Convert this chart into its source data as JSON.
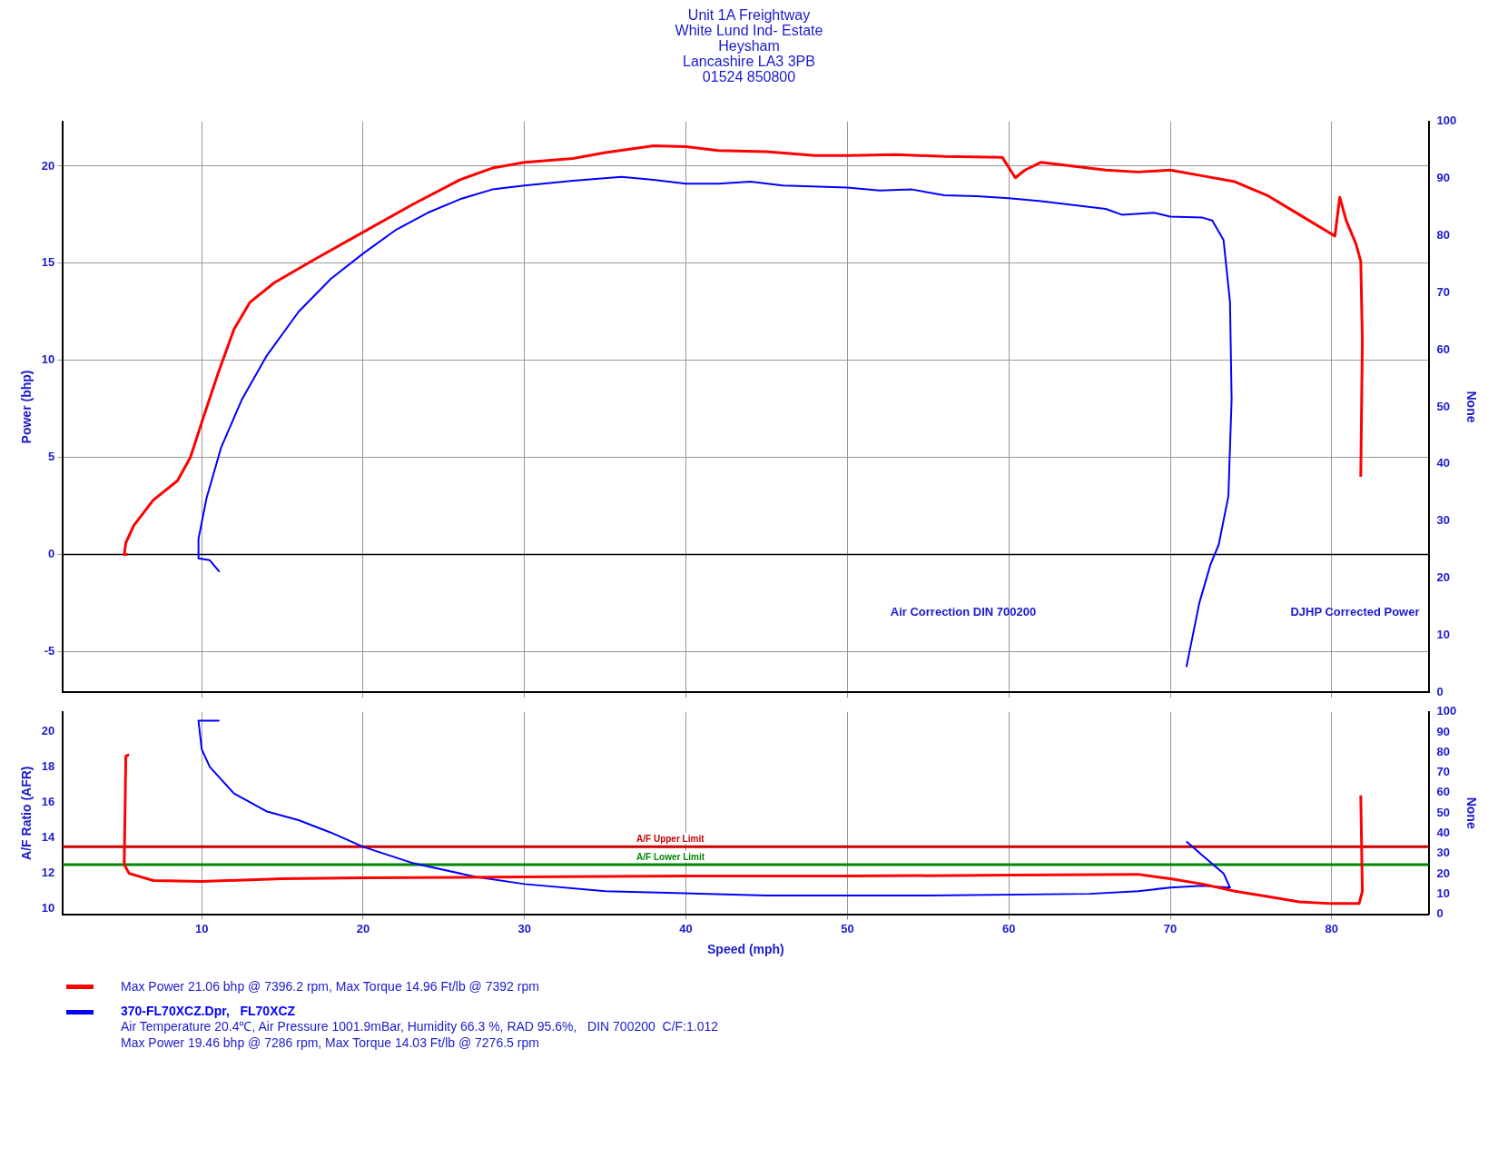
{
  "chart_data": [
    {
      "type": "line",
      "subtitle": "Unit 1A Freightway\nWhite Lund Ind- Estate\nHeysham\nLancashire LA3 3PB\n01524 850800",
      "ylabel": "Power (bhp)",
      "y2label": "None",
      "xlim": [
        1.4,
        86
      ],
      "xticks": [
        10,
        20,
        30,
        40,
        50,
        60,
        70,
        80
      ],
      "ylim": [
        -7.1,
        22.3
      ],
      "yticks": [
        -5,
        0,
        5,
        10,
        15,
        20
      ],
      "y2lim": [
        0,
        100
      ],
      "y2ticks": [
        0,
        10,
        20,
        30,
        40,
        50,
        60,
        70,
        80,
        90,
        100
      ],
      "tick_labels": "y",
      "grid": true,
      "marker": "none",
      "legend": false,
      "annotations": [
        "Air Correction DIN 700200",
        "DJHP Corrected Power"
      ],
      "ref_lines": [
        {
          "axis": "y",
          "value": 0,
          "color": "#000000"
        }
      ],
      "series": [
        {
          "color": "#ff0000",
          "x": [
            5.4,
            5.2,
            5.3,
            5.8,
            7,
            8.5,
            9.3,
            10,
            11,
            12,
            13,
            14.5,
            17,
            20,
            23,
            26,
            28,
            30,
            33,
            35,
            38,
            40,
            42,
            45,
            48,
            50,
            53,
            56,
            59.6,
            60.4,
            61,
            62,
            64,
            66,
            68,
            70,
            72,
            74,
            76,
            78,
            80.2,
            80.5,
            80.9,
            81.5,
            81.8,
            81.9,
            81.8
          ],
          "values": [
            0,
            0,
            0.6,
            1.5,
            2.8,
            3.8,
            5,
            6.8,
            9.3,
            11.6,
            13,
            14,
            15.2,
            16.6,
            18,
            19.3,
            19.9,
            20.2,
            20.4,
            20.7,
            21.05,
            21,
            20.8,
            20.75,
            20.55,
            20.55,
            20.6,
            20.5,
            20.45,
            19.4,
            19.8,
            20.2,
            20,
            19.8,
            19.7,
            19.8,
            19.5,
            19.2,
            18.5,
            17.5,
            16.4,
            18.4,
            17.2,
            16,
            15.1,
            11,
            4
          ]
        },
        {
          "color": "#0000ff",
          "x": [
            11.1,
            10.5,
            9.8,
            9.8,
            10.3,
            11.2,
            12.5,
            14,
            16,
            18,
            20,
            22,
            24,
            26,
            28,
            30,
            33,
            36,
            38,
            40,
            42,
            44,
            46,
            50,
            52,
            54,
            56,
            58,
            60,
            62,
            64,
            66,
            67,
            69,
            70,
            72,
            72.6,
            73.3,
            73.7,
            73.8,
            73.6,
            73,
            72.5,
            71.8,
            71
          ],
          "values": [
            -0.9,
            -0.3,
            -0.2,
            0.8,
            2.9,
            5.5,
            8,
            10.2,
            12.5,
            14.2,
            15.5,
            16.7,
            17.6,
            18.3,
            18.8,
            19,
            19.25,
            19.45,
            19.3,
            19.1,
            19.1,
            19.2,
            19,
            18.9,
            18.75,
            18.8,
            18.5,
            18.45,
            18.35,
            18.2,
            18,
            17.8,
            17.5,
            17.6,
            17.4,
            17.35,
            17.2,
            16.2,
            13,
            8,
            3,
            0.5,
            -0.5,
            -2.5,
            -5.8
          ]
        }
      ]
    },
    {
      "type": "line",
      "xlabel": "Speed (mph)",
      "ylabel": "A/F Ratio (AFR)",
      "y2label": "None",
      "xlim": [
        1.4,
        86
      ],
      "xticks": [
        10,
        20,
        30,
        40,
        50,
        60,
        70,
        80
      ],
      "ylim": [
        9.7,
        21.1
      ],
      "yticks": [
        10,
        12,
        14,
        16,
        18,
        20
      ],
      "y2lim": [
        0,
        100
      ],
      "y2ticks": [
        0,
        10,
        20,
        30,
        40,
        50,
        60,
        70,
        80,
        90,
        100
      ],
      "grid": "x",
      "marker": "none",
      "legend": "bottom",
      "annotations": [
        "Max Power 21.06 bhp @ 7396.2 rpm, Max Torque 14.96 Ft/lb @ 7392 rpm",
        "Air Temperature 20.4℃, Air Pressure 1001.9mBar, Humidity 66.3 %, RAD 95.6%,   DIN 700200  C/F:1.012",
        "Max Power 19.46 bhp @ 7286 rpm, Max Torque 14.03 Ft/lb @ 7276.5 rpm"
      ],
      "ref_lines": [
        {
          "axis": "y",
          "value": 13.5,
          "label": "A/F Upper Limit",
          "color": "#cc0000"
        },
        {
          "axis": "y",
          "value": 12.5,
          "label": "A/F Lower Limit",
          "color": "#008800"
        }
      ],
      "series": [
        {
          "color": "#ff0000",
          "x": [
            5.5,
            5.3,
            5.2,
            5.5,
            7,
            10,
            15,
            20,
            30,
            40,
            50,
            60,
            68,
            70,
            72,
            74,
            76,
            78,
            80,
            81.7,
            81.9,
            81.8
          ],
          "values": [
            18.7,
            18.6,
            12.5,
            12,
            11.6,
            11.55,
            11.7,
            11.75,
            11.8,
            11.85,
            11.85,
            11.9,
            11.95,
            11.7,
            11.4,
            11,
            10.7,
            10.4,
            10.3,
            10.3,
            11,
            16.4
          ]
        },
        {
          "name": "370-FL70XCZ.Dpr,   FL70XCZ",
          "color": "#0000ff",
          "x": [
            11.1,
            9.8,
            10,
            10.5,
            12,
            14,
            16,
            18,
            20,
            23,
            27,
            30,
            35,
            45,
            55,
            65,
            68,
            70,
            72,
            73.7,
            73.3,
            72,
            71
          ],
          "values": [
            20.6,
            20.6,
            19,
            18,
            16.5,
            15.5,
            15,
            14.3,
            13.5,
            12.6,
            11.8,
            11.4,
            11,
            10.75,
            10.75,
            10.85,
            11,
            11.2,
            11.3,
            11.2,
            12,
            13,
            13.8
          ]
        }
      ]
    }
  ]
}
